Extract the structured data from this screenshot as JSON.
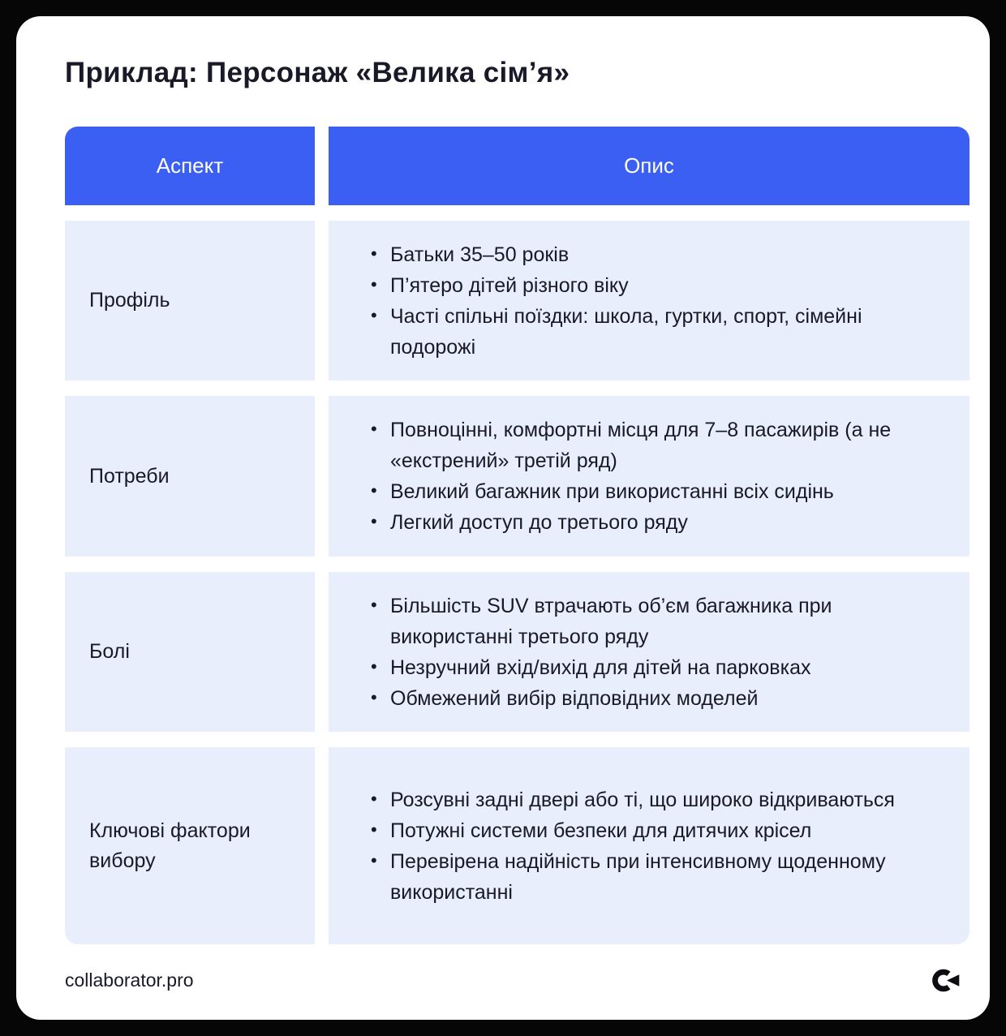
{
  "page": {
    "title": "Приклад: Персонаж «Велика сім’я»",
    "footer": {
      "site": "collaborator.pro",
      "logo_icon": "collaborator-logo"
    }
  },
  "colors": {
    "accent": "#3B5EF3",
    "row_bg": "#E9EEFC",
    "text": "#191927",
    "header_text": "#FFFFFF",
    "card_bg": "#FFFFFF",
    "page_bg": "#060606",
    "logo": "#0D0D12"
  },
  "table": {
    "headers": [
      "Аспект",
      "Опис"
    ],
    "rows": [
      {
        "aspect": "Профіль",
        "items": [
          "Батьки 35–50 років",
          "П’ятеро дітей різного віку",
          "Часті спільні поїздки: школа, гуртки, спорт, сімейні подорожі"
        ]
      },
      {
        "aspect": "Потреби",
        "items": [
          "Повноцінні, комфортні місця для 7–8 пасажирів (а не «екстрений» третій ряд)",
          "Великий багажник при використанні всіх сидінь",
          "Легкий доступ до третього ряду"
        ]
      },
      {
        "aspect": "Болі",
        "items": [
          "Більшість SUV втрачають об’єм багажника при використанні третього ряду",
          "Незручний вхід/вихід для дітей на парковках",
          "Обмежений вибір відповідних моделей"
        ]
      },
      {
        "aspect": "Ключові фактори вибору",
        "items": [
          "Розсувні задні двері або ті, що широко відкриваються",
          "Потужні системи безпеки для дитячих крісел",
          "Перевірена надійність при інтенсивному щоденному використанні"
        ]
      }
    ]
  }
}
